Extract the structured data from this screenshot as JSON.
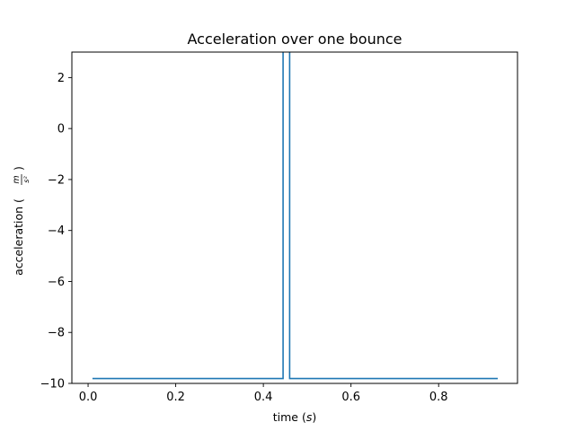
{
  "chart_data": {
    "type": "line",
    "title": "Acceleration over one bounce",
    "xlabel": {
      "main": "time (",
      "unit": "s",
      "close": ")"
    },
    "ylabel": {
      "main": "acceleration (",
      "unit_num": "m",
      "unit_den": "s²",
      "close": ")"
    },
    "xlim": [
      -0.037,
      0.98
    ],
    "ylim": [
      -10,
      3
    ],
    "xticks": [
      0.0,
      0.2,
      0.4,
      0.6,
      0.8
    ],
    "xtick_labels": [
      "0.0",
      "0.2",
      "0.4",
      "0.6",
      "0.8"
    ],
    "yticks": [
      2,
      0,
      -2,
      -4,
      -6,
      -8,
      -10
    ],
    "ytick_labels": [
      "2",
      "0",
      "−2",
      "−4",
      "−6",
      "−8",
      "−10"
    ],
    "grid": false,
    "series": [
      {
        "color": "#1f77b4",
        "x": [
          0.01,
          0.445,
          0.445,
          0.46,
          0.46,
          0.935
        ],
        "y": [
          -9.81,
          -9.81,
          3.5,
          3.5,
          -9.81,
          -9.81
        ]
      }
    ]
  }
}
